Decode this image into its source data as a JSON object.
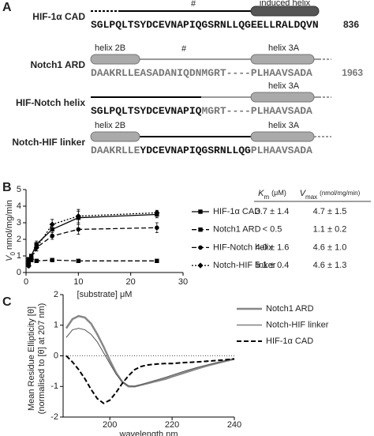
{
  "panel_a": {
    "label": "A",
    "rows": [
      {
        "name": "HIF-1α CAD",
        "segments": [
          "SGLPQLTSYDCEVNAPIQGSRNLLQGEELLRALDQVN"
        ],
        "number": "836",
        "hash": "#",
        "helix": "induced helix"
      },
      {
        "name": "Notch1 ARD",
        "segments": [
          "DAAKRLLEASADANIQDNMGRT----PLHAAVSADA"
        ],
        "number": "1963",
        "hash": "#",
        "helix_left": "helix 2B",
        "helix_right": "helix 3A"
      },
      {
        "name": "HIF-Notch helix",
        "segments": [
          "SGLPQLTSYDCEVNAPIQ",
          "MGRT----PLHAAVSADA"
        ],
        "helix_right": "helix 3A"
      },
      {
        "name": "Notch-HIF linker",
        "segments": [
          "DAAKRLLE",
          "YDCEVNAPIQGSRNLLQG",
          "PLHAAVSADA"
        ],
        "helix_left": "helix 2B",
        "helix_right": "helix 3A"
      }
    ]
  },
  "table": {
    "headers": [
      {
        "symbol": "K",
        "sub": "m",
        "unit": "(μM)"
      },
      {
        "symbol": "V",
        "sub": "max",
        "unit": "(nmol/mg/min)"
      }
    ],
    "rows": [
      [
        "3.7 ± 1.4",
        "4.7 ± 1.5"
      ],
      [
        "< 0.5",
        "1.1 ± 0.2"
      ],
      [
        "4.0 ± 1.6",
        "4.6 ± 1.0"
      ],
      [
        "5.1 ± 0.4",
        "4.6 ± 1.3"
      ]
    ]
  },
  "chart_data": [
    {
      "type": "line",
      "panel_label": "B",
      "y_label": "V",
      "y_label_sub": "0",
      "y_label_unit": "nmol/mg/min",
      "x_label": "[substrate]  μM",
      "x": [
        0.5,
        1,
        2,
        5,
        10,
        25
      ],
      "xlim": [
        0,
        30
      ],
      "xticks": [
        0,
        10,
        20,
        30
      ],
      "ylim": [
        0,
        5
      ],
      "yticks": [
        0,
        1,
        2,
        3,
        4,
        5
      ],
      "series": [
        {
          "name": "HIF-1α CAD",
          "color": "#000000",
          "dash": "solid",
          "marker": "square",
          "values": [
            0.6,
            1.0,
            1.7,
            2.6,
            3.3,
            3.5
          ],
          "errors": [
            0.1,
            0.1,
            0.2,
            0.3,
            0.4,
            0.2
          ]
        },
        {
          "name": "Notch1 ARD",
          "color": "#000000",
          "dash": "dashed",
          "marker": "square",
          "values": [
            0.8,
            0.75,
            0.7,
            0.75,
            0.7,
            0.7
          ],
          "errors": [
            0.05,
            0.05,
            0.05,
            0.05,
            0.05,
            0.05
          ]
        },
        {
          "name": "HIF-Notch helix",
          "color": "#000000",
          "dash": "dashed",
          "marker": "circle",
          "values": [
            0.5,
            0.9,
            1.5,
            2.2,
            2.6,
            2.7
          ],
          "errors": [
            0.1,
            0.1,
            0.2,
            0.2,
            0.3,
            0.3
          ]
        },
        {
          "name": "Notch-HIF linker",
          "color": "#000000",
          "dash": "dotted",
          "marker": "diamond",
          "values": [
            0.4,
            0.8,
            1.5,
            2.9,
            3.4,
            3.6
          ],
          "errors": [
            0.1,
            0.1,
            0.2,
            0.3,
            0.4,
            0.15
          ]
        }
      ]
    },
    {
      "type": "line",
      "panel_label": "C",
      "y_label": [
        "Mean Residue Ellipticity [θ]",
        "(normalised to [θ] at 207 nm)"
      ],
      "x_label": "wavelength  nm",
      "x": [
        186,
        188,
        190,
        192,
        194,
        196,
        198,
        200,
        202,
        204,
        206,
        208,
        210,
        212,
        214,
        216,
        218,
        220,
        224,
        228,
        232,
        236,
        240
      ],
      "xlim": [
        185,
        240
      ],
      "xticks": [
        200,
        220,
        240
      ],
      "ylim": [
        -2,
        2
      ],
      "yticks": [
        -2,
        -1,
        0,
        1,
        2
      ],
      "zero_line": true,
      "series": [
        {
          "name": "Notch1 ARD",
          "color": "#888888",
          "width": 2.5,
          "dash": "solid",
          "values": [
            0.9,
            1.2,
            1.3,
            1.25,
            1.05,
            0.7,
            0.3,
            -0.15,
            -0.55,
            -0.85,
            -1.0,
            -1.0,
            -0.95,
            -0.9,
            -0.85,
            -0.8,
            -0.75,
            -0.68,
            -0.55,
            -0.42,
            -0.3,
            -0.2,
            -0.1
          ]
        },
        {
          "name": "Notch-HIF linker",
          "color": "#555555",
          "width": 1,
          "dash": "solid",
          "values": [
            0.6,
            0.85,
            0.9,
            0.85,
            0.7,
            0.45,
            0.1,
            -0.25,
            -0.6,
            -0.85,
            -0.98,
            -1.0,
            -0.95,
            -0.88,
            -0.82,
            -0.76,
            -0.7,
            -0.63,
            -0.5,
            -0.38,
            -0.28,
            -0.18,
            -0.1
          ]
        },
        {
          "name": "HIF-1α CAD",
          "color": "#000000",
          "width": 2,
          "dash": "dashed",
          "values": [
            0.0,
            -0.2,
            -0.45,
            -0.75,
            -1.1,
            -1.4,
            -1.55,
            -1.45,
            -1.2,
            -0.9,
            -0.65,
            -0.45,
            -0.35,
            -0.3,
            -0.28,
            -0.26,
            -0.25,
            -0.25,
            -0.22,
            -0.2,
            -0.17,
            -0.14,
            -0.1
          ]
        }
      ]
    }
  ]
}
